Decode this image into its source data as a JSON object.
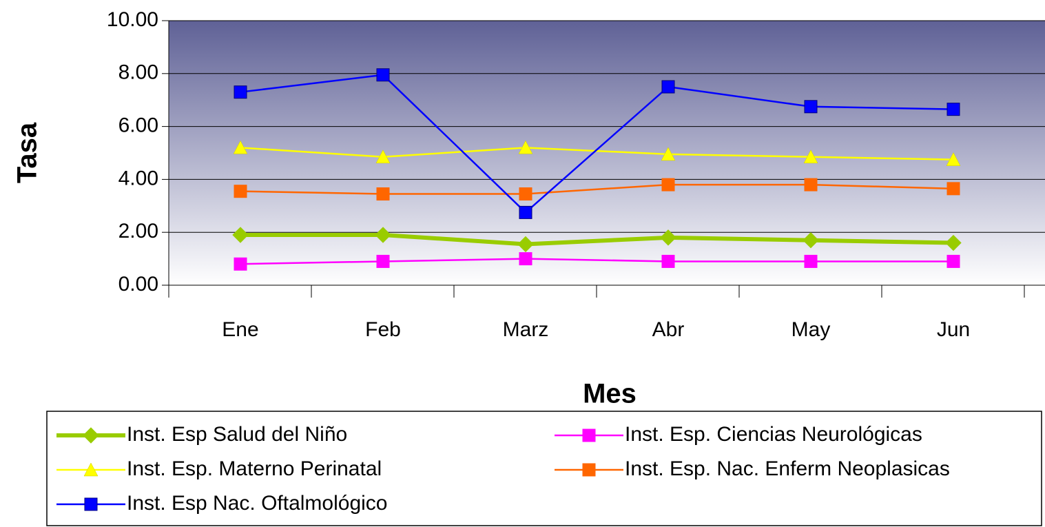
{
  "chart_data": {
    "type": "line",
    "x_label": "Mes",
    "y_label": "Tasa",
    "categories": [
      "Ene",
      "Feb",
      "Marz",
      "Abr",
      "May",
      "Jun"
    ],
    "series": [
      {
        "name": "Inst. Esp Salud del Niño",
        "color": "#99cc00",
        "marker": "diamond",
        "values": [
          1.9,
          1.9,
          1.55,
          1.8,
          1.7,
          1.6
        ]
      },
      {
        "name": "Inst. Esp. Ciencias Neurológicas",
        "color": "#ff00ff",
        "marker": "square",
        "values": [
          0.8,
          0.9,
          1.0,
          0.9,
          0.9,
          0.9
        ]
      },
      {
        "name": "Inst. Esp. Materno Perinatal",
        "color": "#ffff00",
        "marker": "triangle",
        "values": [
          5.2,
          4.85,
          5.2,
          4.95,
          4.85,
          4.75
        ]
      },
      {
        "name": "Inst. Esp. Nac. Enferm Neoplasicas",
        "color": "#ff6600",
        "marker": "square",
        "values": [
          3.55,
          3.45,
          3.45,
          3.8,
          3.8,
          3.65
        ]
      },
      {
        "name": "Inst. Esp Nac. Oftalmológico",
        "color": "#0000ff",
        "marker": "square",
        "values": [
          7.3,
          7.95,
          2.75,
          7.5,
          6.75,
          6.65
        ]
      }
    ],
    "ylim": [
      0,
      10
    ],
    "yticks": [
      {
        "value": 0,
        "label": "0.00"
      },
      {
        "value": 2,
        "label": "2.00"
      },
      {
        "value": 4,
        "label": "4.00"
      },
      {
        "value": 6,
        "label": "6.00"
      },
      {
        "value": 8,
        "label": "8.00"
      },
      {
        "value": 10,
        "label": "10.00"
      }
    ],
    "grid": true
  }
}
